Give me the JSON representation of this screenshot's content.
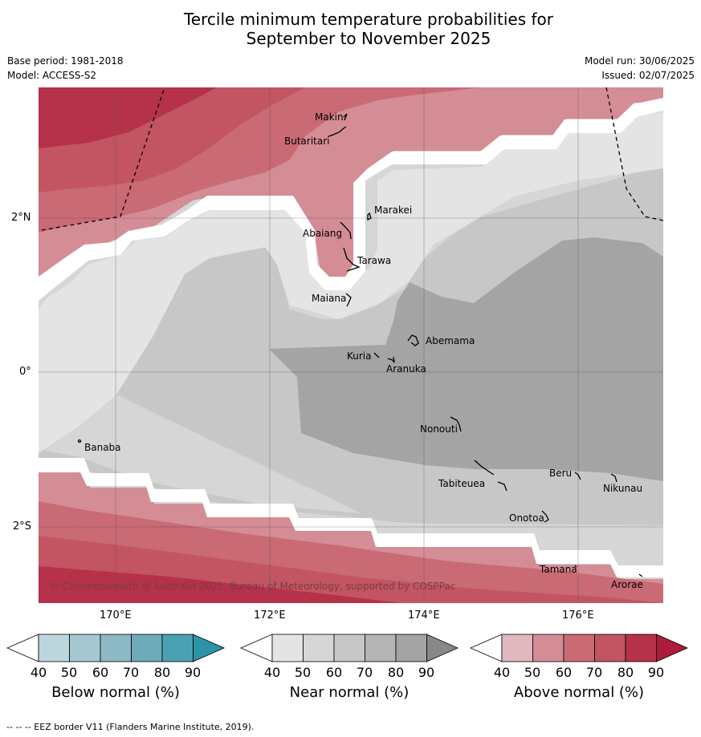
{
  "title_line1": "Tercile minimum temperature probabilities for",
  "title_line2": "September to November 2025",
  "base_period": "Base period: 1981-2018",
  "model": "Model: ACCESS-S2",
  "model_run": "Model run: 30/06/2025",
  "issued": "Issued: 02/07/2025",
  "copyright": "© Commonwealth of Australia 2025, Bureau of Meteorology, supported by COSPPac",
  "footer": "--  --  -- EEZ border V11 (Flanders Marine Institute, 2019).",
  "lat_labels": [
    "2°N",
    "0°",
    "2°S"
  ],
  "lon_labels": [
    "170°E",
    "172°E",
    "174°E",
    "176°E"
  ],
  "places": {
    "makin": "Makin",
    "butaritari": "Butaritari",
    "marakei": "Marakei",
    "abaiang": "Abaiang",
    "tarawa": "Tarawa",
    "maiana": "Maiana",
    "abemama": "Abemama",
    "kuria": "Kuria",
    "aranuka": "Aranuka",
    "nonouti": "Nonouti",
    "banaba": "Banaba",
    "beru": "Beru",
    "tabiteuea": "Tabiteuea",
    "nikunau": "Nikunau",
    "onotoa": "Onotoa",
    "tamana": "Tamana",
    "arorae": "Arorae"
  },
  "colorbars": {
    "ticks": [
      "40",
      "50",
      "60",
      "70",
      "80",
      "90"
    ],
    "below": {
      "label": "Below normal (%)",
      "colors": [
        "#bdd6dd",
        "#a5c8d0",
        "#8cb9c4",
        "#6faab9",
        "#4aa1b1",
        "#2c94a8"
      ]
    },
    "near": {
      "label": "Near normal (%)",
      "colors": [
        "#e4e4e4",
        "#d6d6d6",
        "#c7c7c7",
        "#b5b5b5",
        "#a4a4a4",
        "#888888"
      ]
    },
    "above": {
      "label": "Above normal (%)",
      "colors": [
        "#e1b8bf",
        "#d48d95",
        "#c96a74",
        "#c25561",
        "#b5324a",
        "#ae1c3c"
      ]
    }
  }
}
